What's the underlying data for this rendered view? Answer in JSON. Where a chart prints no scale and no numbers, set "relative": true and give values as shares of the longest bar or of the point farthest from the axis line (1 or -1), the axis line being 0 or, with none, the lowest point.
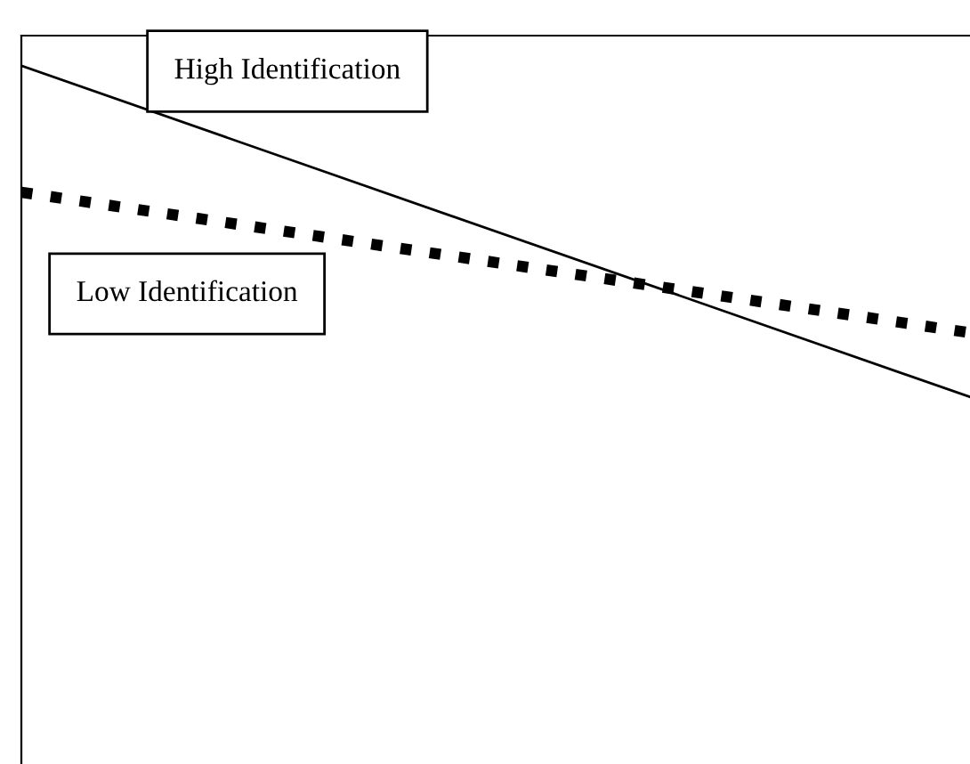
{
  "chart_data": {
    "type": "line",
    "relative": true,
    "categories": [
      null,
      null
    ],
    "series": [
      {
        "name": "High Identification",
        "color": "#000000",
        "line_style": "solid",
        "values": [
          1,
          0
        ]
      },
      {
        "name": "Low Identification",
        "color": "#000000",
        "line_style": "dotted",
        "values": [
          0.618,
          0.194
        ]
      }
    ]
  }
}
